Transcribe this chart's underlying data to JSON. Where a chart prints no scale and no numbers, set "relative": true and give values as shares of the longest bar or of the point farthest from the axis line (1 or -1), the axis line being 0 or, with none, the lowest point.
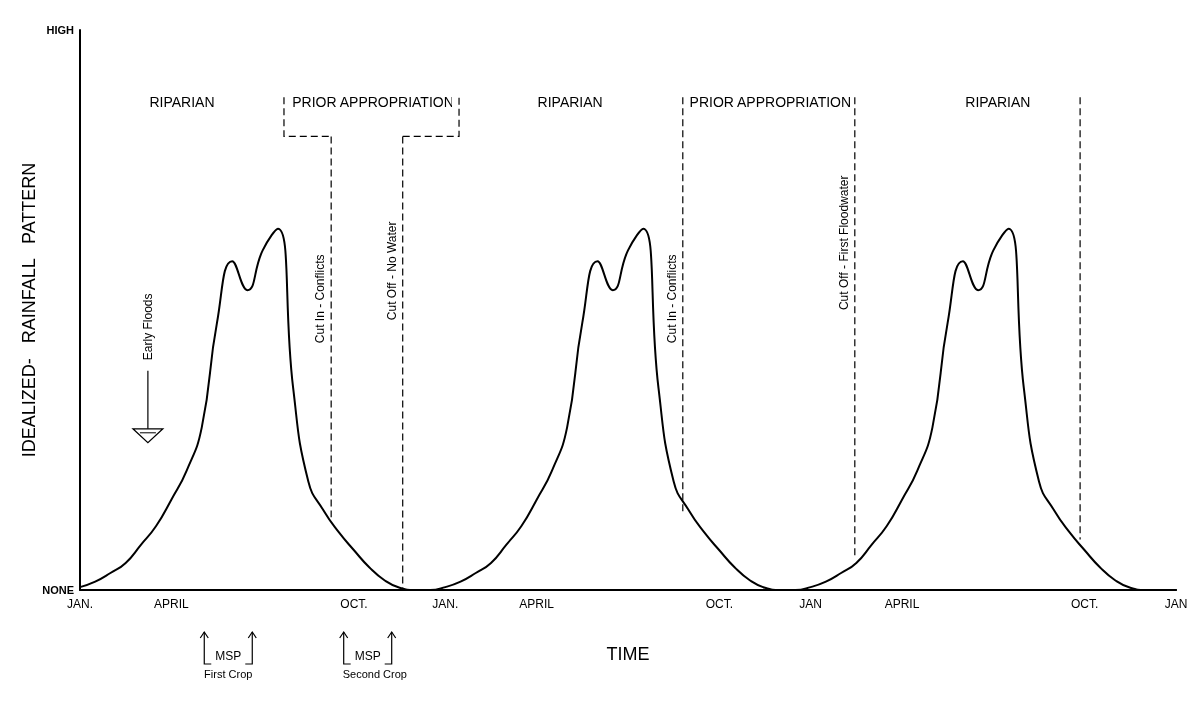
{
  "chart_data": {
    "type": "line",
    "relative": true,
    "xlabel": "TIME",
    "ylabel": "IDEALIZED-   RAINFALL   PATTERN",
    "categories": [
      "JAN.",
      null,
      null,
      null,
      null,
      null,
      "APRIL",
      null,
      null,
      null,
      null,
      null,
      null,
      null,
      null,
      null,
      null,
      null,
      "OCT.",
      null,
      null,
      null,
      null,
      null,
      "JAN.",
      null,
      null,
      null,
      null,
      null,
      "APRIL",
      null,
      null,
      null,
      null,
      null,
      null,
      null,
      null,
      null,
      null,
      null,
      "OCT.",
      null,
      null,
      null,
      null,
      null,
      "JAN",
      null,
      null,
      null,
      null,
      null,
      "APRIL",
      null,
      null,
      null,
      null,
      null,
      null,
      null,
      null,
      null,
      null,
      null,
      "OCT.",
      null,
      null,
      null,
      null,
      null,
      "JAN"
    ],
    "series": [
      {
        "color": "#000000",
        "values": [
          0.008,
          0.023,
          0.047,
          0.075,
          0.125,
          0.177,
          0.25,
          0.33,
          0.45,
          0.74,
          0.91,
          0.83,
          0.94,
          1,
          0.56,
          0.3,
          0.22,
          0.16,
          0.11,
          0.063,
          0.027,
          0.006,
          0,
          0,
          0.008,
          0.023,
          0.047,
          0.075,
          0.125,
          0.177,
          0.25,
          0.33,
          0.45,
          0.74,
          0.91,
          0.83,
          0.94,
          1,
          0.56,
          0.3,
          0.22,
          0.16,
          0.11,
          0.063,
          0.027,
          0.006,
          0,
          0,
          0.008,
          0.023,
          0.047,
          0.075,
          0.125,
          0.177,
          0.25,
          0.33,
          0.45,
          0.74,
          0.91,
          0.83,
          0.94,
          1,
          0.56,
          0.3,
          0.22,
          0.16,
          0.11,
          0.063,
          0.027,
          0.006,
          0,
          0,
          0
        ]
      }
    ],
    "marker": "none",
    "line_style": "solid",
    "grid": false,
    "annotations": [
      "HIGH",
      "NONE",
      "RIPARIAN",
      "PRIOR APPROPRIATION",
      "RIPARIAN",
      "PRIOR APPROPRIATION",
      "RIPARIAN",
      "Cut In  -  Conflicts",
      "Cut Off  -  No Water",
      "Cut In  -  Conflicts",
      "Cut Off  -  First Floodwater",
      "Early Floods",
      "MSP",
      "First Crop",
      "MSP",
      "Second Crop"
    ]
  }
}
